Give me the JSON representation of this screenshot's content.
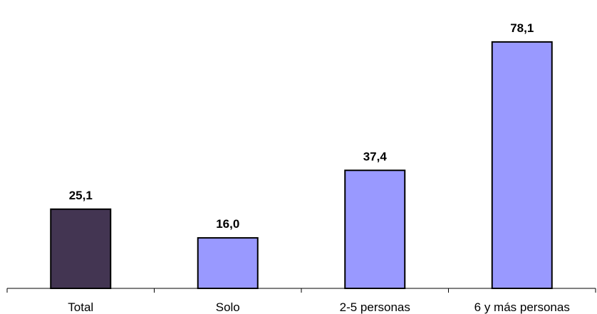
{
  "chart_data": {
    "type": "bar",
    "categories": [
      "Total",
      "Solo",
      "2-5 personas",
      "6 y más personas"
    ],
    "values": [
      25.1,
      16.0,
      37.4,
      78.1
    ],
    "value_labels": [
      "25,1",
      "16,0",
      "37,4",
      "78,1"
    ],
    "title": "",
    "xlabel": "",
    "ylabel": "",
    "ylim": [
      0,
      88
    ],
    "grid": false,
    "legend": "none",
    "colors": {
      "highlight": "#433552",
      "default": "#9999ff",
      "outline": "#000000"
    }
  }
}
